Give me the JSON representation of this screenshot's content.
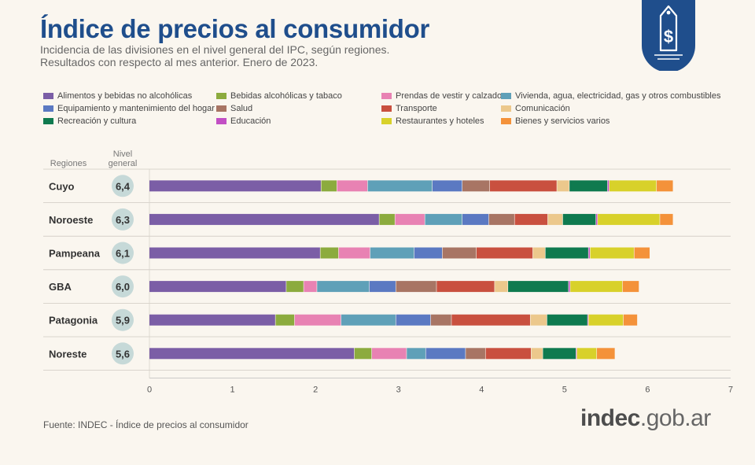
{
  "header": {
    "title": "Índice de precios al consumidor",
    "subtitle_line1": "Incidencia de las divisiones en el nivel general del IPC, según regiones.",
    "subtitle_line2": "Resultados con respecto al mes anterior. Enero de 2023."
  },
  "badge": {
    "icon": "dollar-price-tag-icon",
    "color": "#1f4e8c"
  },
  "table_headers": {
    "regions": "Regiones",
    "general_level": "Nivel general"
  },
  "footer": {
    "source": "Fuente: INDEC - Índice de precios al consumidor",
    "logo_bold": "indec",
    "logo_light": ".gob.ar"
  },
  "chart_data": {
    "type": "bar",
    "orientation": "horizontal",
    "stacked": true,
    "title": "Índice de precios al consumidor",
    "xlim": [
      0,
      7
    ],
    "xticks": [
      0,
      1,
      2,
      3,
      4,
      5,
      6,
      7
    ],
    "grid": false,
    "legend_position": "top",
    "categories": [
      "Cuyo",
      "Noroeste",
      "Pampeana",
      "GBA",
      "Patagonia",
      "Noreste"
    ],
    "general_level": [
      "6,4",
      "6,3",
      "6,1",
      "6,0",
      "5,9",
      "5,6"
    ],
    "series": [
      {
        "name": "Alimentos y bebidas no alcohólicas",
        "color": "#7b5ea6",
        "values": [
          2.07,
          2.77,
          2.06,
          1.65,
          1.52,
          2.47
        ]
      },
      {
        "name": "Bebidas alcohólicas y tabaco",
        "color": "#8cab3e",
        "values": [
          0.19,
          0.19,
          0.22,
          0.21,
          0.23,
          0.21
        ]
      },
      {
        "name": "Prendas de vestir y calzado",
        "color": "#e882b3",
        "values": [
          0.37,
          0.36,
          0.38,
          0.16,
          0.56,
          0.42
        ]
      },
      {
        "name": "Vivienda, agua, electricidad, gas y otros combustibles",
        "color": "#5fa0b8",
        "values": [
          0.78,
          0.45,
          0.53,
          0.63,
          0.66,
          0.23
        ]
      },
      {
        "name": "Equipamiento y mantenimiento del hogar",
        "color": "#5b79c2",
        "values": [
          0.36,
          0.32,
          0.34,
          0.32,
          0.42,
          0.48
        ]
      },
      {
        "name": "Salud",
        "color": "#a87564",
        "values": [
          0.33,
          0.31,
          0.41,
          0.49,
          0.25,
          0.24
        ]
      },
      {
        "name": "Transporte",
        "color": "#c9503f",
        "values": [
          0.81,
          0.4,
          0.68,
          0.7,
          0.95,
          0.55
        ]
      },
      {
        "name": "Comunicación",
        "color": "#ecc88c",
        "values": [
          0.15,
          0.18,
          0.15,
          0.16,
          0.2,
          0.14
        ]
      },
      {
        "name": "Recreación y cultura",
        "color": "#0f7a4f",
        "values": [
          0.46,
          0.4,
          0.52,
          0.73,
          0.49,
          0.4
        ]
      },
      {
        "name": "Educación",
        "color": "#c24fc4",
        "values": [
          0.02,
          0.02,
          0.02,
          0.02,
          0.01,
          0.01
        ]
      },
      {
        "name": "Restaurantes y hoteles",
        "color": "#d8d12a",
        "values": [
          0.57,
          0.75,
          0.53,
          0.63,
          0.42,
          0.24
        ]
      },
      {
        "name": "Bienes y servicios varios",
        "color": "#f4923a",
        "values": [
          0.2,
          0.16,
          0.19,
          0.2,
          0.17,
          0.22
        ]
      }
    ]
  }
}
